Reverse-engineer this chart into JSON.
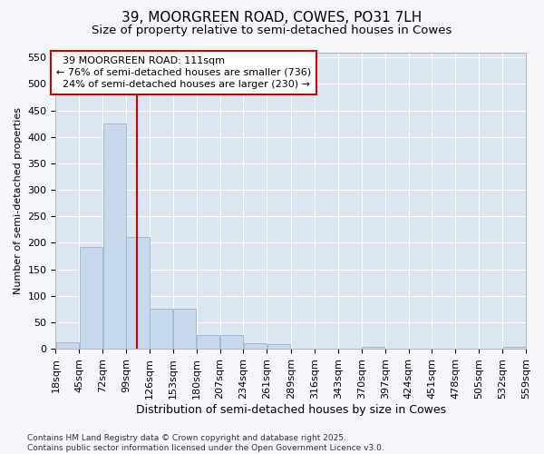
{
  "title_line1": "39, MOORGREEN ROAD, COWES, PO31 7LH",
  "title_line2": "Size of property relative to semi-detached houses in Cowes",
  "xlabel": "Distribution of semi-detached houses by size in Cowes",
  "ylabel": "Number of semi-detached properties",
  "bin_edges": [
    18,
    45,
    72,
    99,
    126,
    153,
    180,
    207,
    234,
    261,
    289,
    316,
    343,
    370,
    397,
    424,
    451,
    478,
    505,
    532,
    559
  ],
  "bar_values": [
    12,
    193,
    425,
    211,
    76,
    76,
    26,
    26,
    11,
    8,
    0,
    0,
    0,
    4,
    0,
    0,
    0,
    0,
    0,
    3
  ],
  "bar_color": "#c8d8ec",
  "bar_edge_color": "#9ab4cf",
  "subject_size": 111,
  "subject_label": "39 MOORGREEN ROAD: 111sqm",
  "pct_smaller": 76,
  "n_smaller": 736,
  "pct_larger": 24,
  "n_larger": 230,
  "annotation_box_facecolor": "#ffffff",
  "annotation_box_edgecolor": "#cc0000",
  "vline_color": "#cc0000",
  "ylim": [
    0,
    560
  ],
  "yticks": [
    0,
    50,
    100,
    150,
    200,
    250,
    300,
    350,
    400,
    450,
    500,
    550
  ],
  "plot_bg_color": "#dce6f0",
  "fig_bg_color": "#f5f7fb",
  "grid_color": "#ffffff",
  "footer_text": "Contains HM Land Registry data © Crown copyright and database right 2025.\nContains public sector information licensed under the Open Government Licence v3.0.",
  "title_fontsize": 11,
  "subtitle_fontsize": 9.5,
  "xlabel_fontsize": 9,
  "ylabel_fontsize": 8,
  "tick_fontsize": 8,
  "annot_fontsize": 8,
  "footer_fontsize": 6.5
}
